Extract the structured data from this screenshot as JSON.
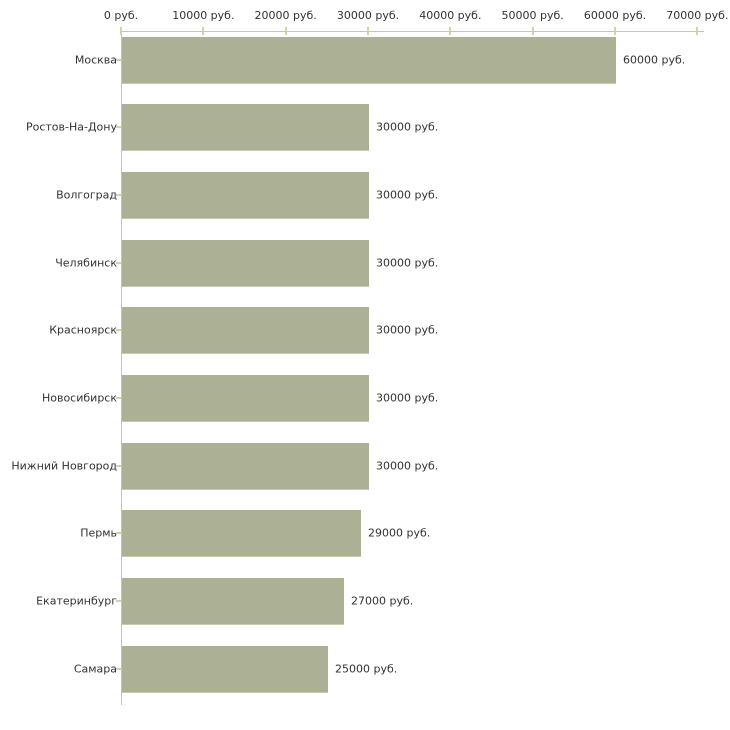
{
  "chart_data": {
    "type": "bar",
    "orientation": "horizontal",
    "title": "",
    "xlabel": "",
    "ylabel": "",
    "unit": "руб.",
    "categories": [
      "Москва",
      "Ростов-На-Дону",
      "Волгоград",
      "Челябинск",
      "Красноярск",
      "Новосибирск",
      "Нижний Новгород",
      "Пермь",
      "Екатеринбург",
      "Самара"
    ],
    "values": [
      60000,
      30000,
      30000,
      30000,
      30000,
      30000,
      30000,
      29000,
      27000,
      25000
    ],
    "value_labels": [
      "60000 руб.",
      "30000 руб.",
      "30000 руб.",
      "30000 руб.",
      "30000 руб.",
      "30000 руб.",
      "30000 руб.",
      "29000 руб.",
      "27000 руб.",
      "25000 руб."
    ],
    "x_ticks": [
      0,
      10000,
      20000,
      30000,
      40000,
      50000,
      60000,
      70000
    ],
    "x_tick_labels": [
      "0 руб.",
      "10000 руб.",
      "20000 руб.",
      "30000 руб.",
      "40000 руб.",
      "50000 руб.",
      "60000 руб.",
      "70000 руб."
    ],
    "xlim": [
      0,
      70000
    ],
    "axis_position": "top",
    "grid": false,
    "legend": false,
    "colors": {
      "bar_fill": "#acb196",
      "bar_edge": "#c6cab2",
      "axis_line": "#c3c3c3",
      "tick_mark": "#d6d2a8",
      "text": "#333333",
      "background": "#ffffff"
    }
  }
}
